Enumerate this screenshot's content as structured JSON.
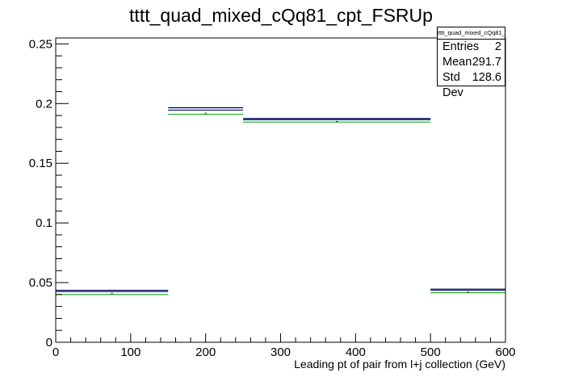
{
  "chart_data": {
    "type": "step-histogram",
    "title": "tttt_quad_mixed_cQq81_cpt_FSRUp",
    "xlabel": "Leading pt of pair from l+j collection (GeV)",
    "ylabel": "",
    "xlim": [
      0,
      600
    ],
    "ylim": [
      0,
      0.255
    ],
    "x_ticks": [
      0,
      100,
      200,
      300,
      400,
      500,
      600
    ],
    "x_tick_labels": [
      "0",
      "100",
      "200",
      "300",
      "400",
      "500",
      "600"
    ],
    "y_ticks": [
      0,
      0.05,
      0.1,
      0.15,
      0.2,
      0.25
    ],
    "y_tick_labels": [
      "0",
      "0.05",
      "0.1",
      "0.15",
      "0.2",
      "0.25"
    ],
    "bin_edges": [
      0,
      150,
      250,
      500,
      600
    ],
    "series": [
      {
        "color": "#000000",
        "values": [
          0.0435,
          0.1965,
          0.1875,
          0.0445
        ]
      },
      {
        "color": "#0000cc",
        "values": [
          0.0425,
          0.1945,
          0.1865,
          0.0435
        ]
      },
      {
        "color": "#00cc00",
        "values": [
          0.04,
          0.191,
          0.1845,
          0.0415
        ]
      }
    ],
    "markers": {
      "color": "#000000",
      "values": [
        0.041,
        0.192,
        0.185,
        0.042
      ]
    },
    "grid": false,
    "legend": "none",
    "stats_box": {
      "title": "tttt_quad_mixed_cQq81_cpt_FSRUp",
      "rows": [
        {
          "label": "Entries",
          "value": "2"
        },
        {
          "label": "Mean",
          "value": "291.7"
        },
        {
          "label": "Std Dev",
          "value": "128.6"
        }
      ],
      "placement": "top-right"
    }
  }
}
